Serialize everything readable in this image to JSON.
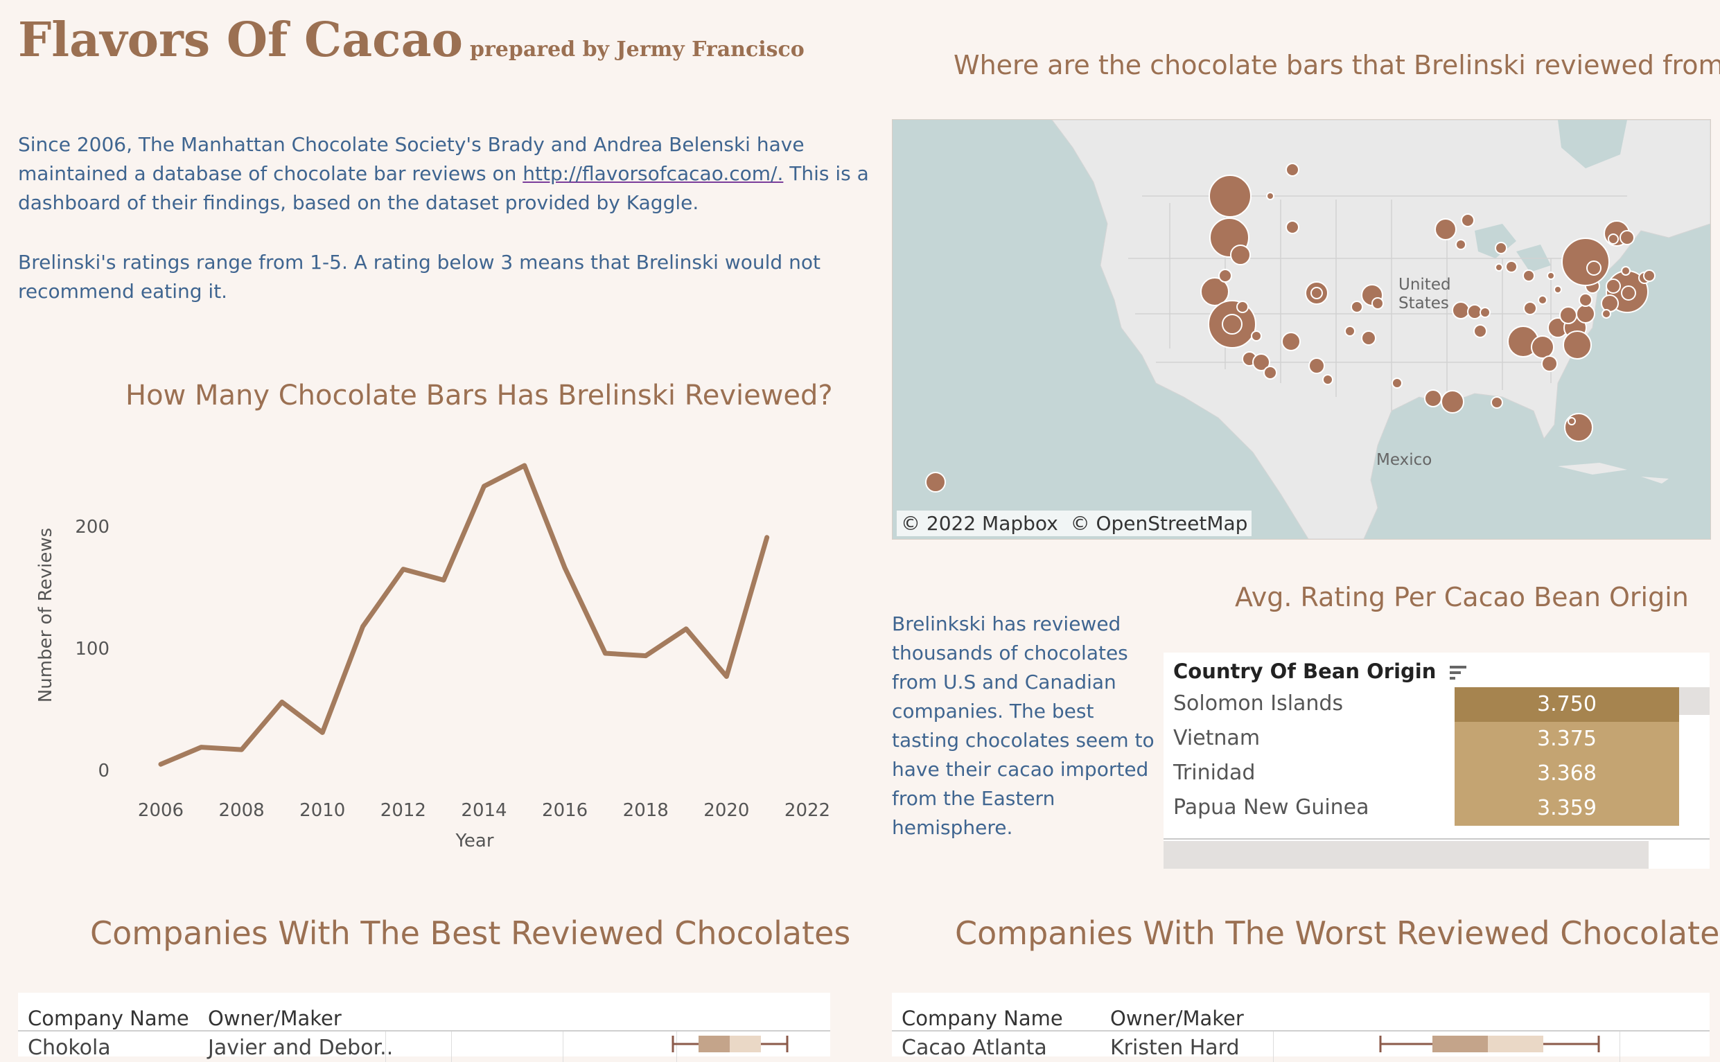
{
  "header": {
    "title": "Flavors Of Cacao",
    "subtitle": "prepared by Jermy Francisco"
  },
  "intro": {
    "p1_pre": "Since 2006, The Manhattan Chocolate Society's Brady and Andrea Belenski have maintained a database of chocolate bar reviews on ",
    "p1_link": "http://flavorsofcacao.com/.",
    "p1_post": " This is a dashboard of their findings, based on the dataset provided by Kaggle.",
    "p2": "Brelinski's ratings range from 1-5. A rating below 3 means that Brelinski would not recommend eating it."
  },
  "map": {
    "title": "Where are the chocolate bars that Brelinski reviewed from?",
    "label_us": "United States",
    "label_mexico": "Mexico",
    "attribution_mapbox": "© 2022 Mapbox",
    "attribution_osm": "© OpenStreetMap",
    "land_color": "#e9e9e9",
    "water_color": "#c5d6d6",
    "marker_color": "#a9745a"
  },
  "line_chart_title": "How Many Chocolate Bars Has Brelinski Reviewed?",
  "chart_data": {
    "type": "line",
    "xlabel": "Year",
    "ylabel": "Number of Reviews",
    "x": [
      2006,
      2007,
      2008,
      2009,
      2010,
      2011,
      2012,
      2013,
      2014,
      2015,
      2016,
      2017,
      2018,
      2019,
      2020,
      2021
    ],
    "values": [
      5,
      19,
      17,
      56,
      31,
      118,
      165,
      156,
      233,
      250,
      166,
      96,
      94,
      116,
      77,
      191
    ],
    "xticks": [
      "2006",
      "2008",
      "2010",
      "2012",
      "2014",
      "2016",
      "2018",
      "2020",
      "2022"
    ],
    "yticks": [
      "0",
      "100",
      "200"
    ],
    "xlim": [
      2006,
      2022
    ],
    "ylim": [
      0,
      250
    ],
    "color": "#a47b5d",
    "grid": false
  },
  "side_text": "Brelinkski has reviewed thousands of chocolates from U.S and Canadian companies. The best tasting chocolates seem to have their cacao imported from the Eastern hemisphere.",
  "origin_table": {
    "title": "Avg. Rating Per Cacao Bean Origin",
    "column_header": "Country Of Bean Origin",
    "rows": [
      {
        "name": "Solomon Islands",
        "value": "3.750",
        "color": "#a6844f"
      },
      {
        "name": "Vietnam",
        "value": "3.375",
        "color": "#c4a472"
      },
      {
        "name": "Trinidad",
        "value": "3.368",
        "color": "#c4a472"
      },
      {
        "name": "Papua New Guinea",
        "value": "3.359",
        "color": "#c4a472"
      }
    ]
  },
  "best_table": {
    "title": "Companies With The Best Reviewed Chocolates",
    "col1": "Company Name",
    "col2": "Owner/Maker",
    "row_company": "Chokola",
    "row_owner": "Javier and Debor.."
  },
  "worst_table": {
    "title": "Companies With The Worst Reviewed Chocolates",
    "col1": "Company Name",
    "col2": "Owner/Maker",
    "row_company": "Cacao Atlanta",
    "row_owner": "Kristen Hard"
  }
}
